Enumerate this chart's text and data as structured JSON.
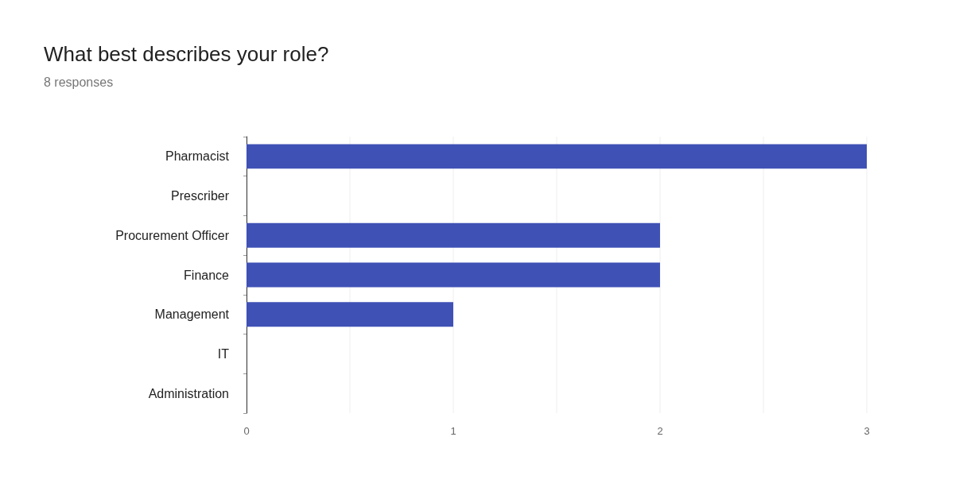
{
  "chart_data": {
    "type": "bar",
    "title": "What best describes your role?",
    "subtitle": "8 responses",
    "orientation": "horizontal",
    "categories": [
      "Pharmacist",
      "Prescriber",
      "Procurement Officer",
      "Finance",
      "Management",
      "IT",
      "Administration"
    ],
    "values": [
      3,
      0,
      2,
      2,
      1,
      0,
      0
    ],
    "color": "#3f51b5",
    "xlim": [
      0,
      3
    ],
    "xticks": [
      0,
      {
        "value": 0.5,
        "label": null
      },
      1,
      {
        "value": 1.5,
        "label": null
      },
      2,
      {
        "value": 2.5,
        "label": null
      },
      3
    ],
    "grid": "x"
  }
}
